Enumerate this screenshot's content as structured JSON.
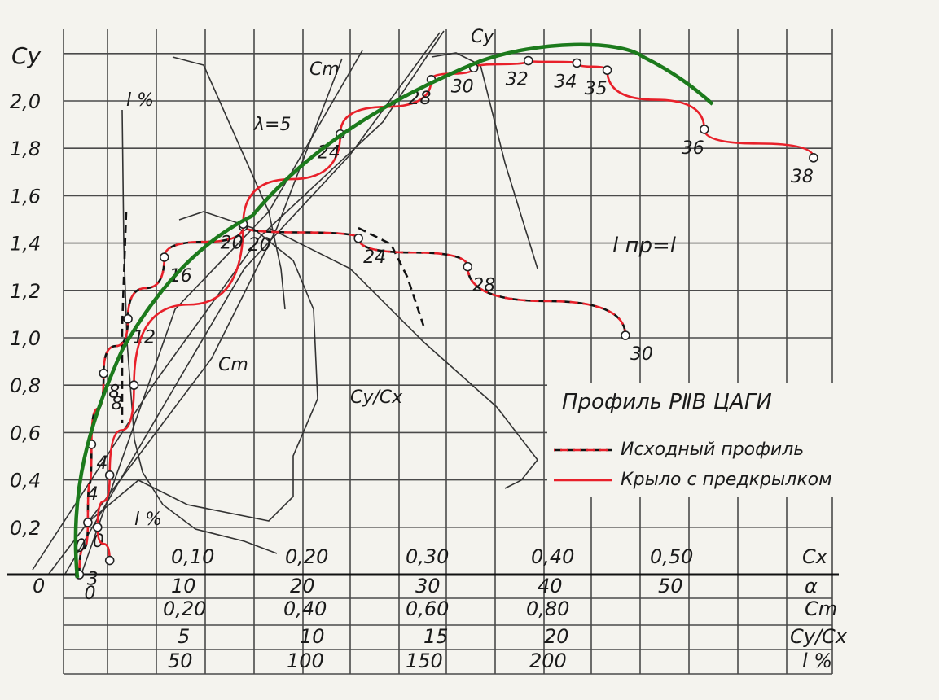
{
  "chart_data": {
    "type": "line",
    "title": "Профиль РⅡВ ЦАГИ",
    "ylabel": "Cy",
    "ylim": [
      0,
      2.2
    ],
    "yticks": [
      "0,2",
      "0,4",
      "0,6",
      "0,8",
      "1,0",
      "1,2",
      "1,4",
      "1,6",
      "1,8",
      "2,0"
    ],
    "x_axes": [
      {
        "name": "Cx",
        "ticks": [
          "0,10",
          "0,20",
          "0,30",
          "0,40",
          "0,50"
        ]
      },
      {
        "name": "α",
        "ticks": [
          "0",
          "10",
          "20",
          "30",
          "40",
          "50"
        ]
      },
      {
        "name": "Cm",
        "ticks": [
          "0,20",
          "0,40",
          "0,60",
          "0,80"
        ]
      },
      {
        "name": "Cy/Cx",
        "ticks": [
          "5",
          "10",
          "15",
          "20"
        ]
      },
      {
        "name": "l %",
        "ticks": [
          "50",
          "100",
          "150",
          "200"
        ]
      }
    ],
    "legend": {
      "placement": "right-middle",
      "entries": [
        "Исходный профиль",
        "Крыло с предкрылком"
      ]
    },
    "annotations": [
      "Cy",
      "Cm",
      "Cm",
      "λ=5",
      "l %",
      "l %",
      "Cy/Cx",
      "l пр=l"
    ],
    "series": [
      {
        "name": "Исходный профиль",
        "x_axis": "Cx",
        "points": [
          {
            "label": "0",
            "x": 0.005,
            "y": 0.0
          },
          {
            "label": "0",
            "x": 0.012,
            "y": 0.22
          },
          {
            "label": "4",
            "x": 0.015,
            "y": 0.55
          },
          {
            "label": "8",
            "x": 0.025,
            "y": 0.85
          },
          {
            "label": "12",
            "x": 0.045,
            "y": 1.08
          },
          {
            "label": "16",
            "x": 0.075,
            "y": 1.34
          },
          {
            "label": "20",
            "x": 0.14,
            "y": 1.47
          },
          {
            "label": "24",
            "x": 0.235,
            "y": 1.42
          },
          {
            "label": "28",
            "x": 0.325,
            "y": 1.3
          },
          {
            "label": "30",
            "x": 0.455,
            "y": 1.01
          }
        ]
      },
      {
        "name": "Крыло с предкрылком",
        "x_axis": "Cx",
        "points": [
          {
            "label": "3",
            "x": 0.03,
            "y": 0.06
          },
          {
            "label": "0",
            "x": 0.02,
            "y": 0.2
          },
          {
            "label": "4",
            "x": 0.03,
            "y": 0.42
          },
          {
            "label": "8",
            "x": 0.05,
            "y": 0.8
          },
          {
            "label": "20",
            "x": 0.14,
            "y": 1.48
          },
          {
            "label": "24",
            "x": 0.22,
            "y": 1.86
          },
          {
            "label": "28",
            "x": 0.295,
            "y": 2.09
          },
          {
            "label": "30",
            "x": 0.33,
            "y": 2.14
          },
          {
            "label": "32",
            "x": 0.375,
            "y": 2.17
          },
          {
            "label": "34",
            "x": 0.415,
            "y": 2.16
          },
          {
            "label": "35",
            "x": 0.44,
            "y": 2.13
          },
          {
            "label": "36",
            "x": 0.52,
            "y": 1.88
          },
          {
            "label": "38",
            "x": 0.61,
            "y": 1.76
          }
        ]
      }
    ],
    "colors": {
      "original": "#111111",
      "slat": "#e8202a",
      "overlay": "#1c7a1c",
      "grid": "#4a4a4a"
    }
  }
}
